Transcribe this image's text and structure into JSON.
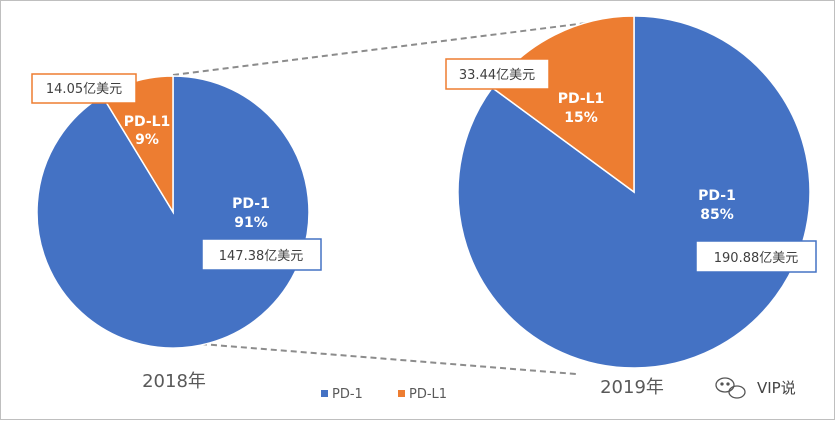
{
  "chart_data": {
    "type": "pie",
    "legend": [
      "PD-1",
      "PD-L1"
    ],
    "legend_position": "bottom",
    "colors": {
      "PD-1": "#4472c4",
      "PD-L1": "#ed7d31"
    },
    "pies": [
      {
        "year": "2018年",
        "slices": [
          {
            "name": "PD-1",
            "percent_label": "91%",
            "value_label": "147.38亿美元",
            "value": 147.38
          },
          {
            "name": "PD-L1",
            "percent_label": "9%",
            "value_label": "14.05亿美元",
            "value": 14.05
          }
        ]
      },
      {
        "year": "2019年",
        "slices": [
          {
            "name": "PD-1",
            "percent_label": "85%",
            "value_label": "190.88亿美元",
            "value": 190.88
          },
          {
            "name": "PD-L1",
            "percent_label": "15%",
            "value_label": "33.44亿美元",
            "value": 33.44
          }
        ]
      }
    ]
  },
  "watermark": "VIP说"
}
